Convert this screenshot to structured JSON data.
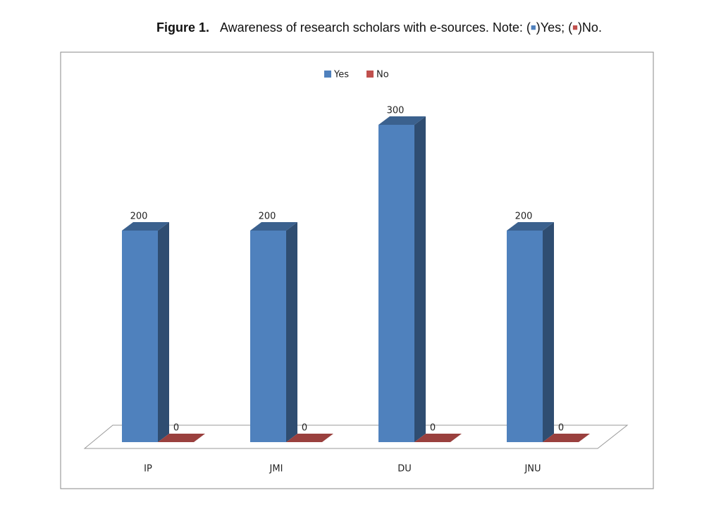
{
  "chart_data": {
    "type": "bar3d",
    "figure_label": "Figure 1.",
    "caption_parts": [
      "Awareness of research scholars with e-sources. Note: (",
      ")Yes; (",
      ")No."
    ],
    "categories": [
      "IP",
      "JMI",
      "DU",
      "JNU"
    ],
    "series": [
      {
        "name": "Yes",
        "color": "#4f81bd",
        "values": [
          200,
          200,
          300,
          200
        ]
      },
      {
        "name": "No",
        "color": "#c0504d",
        "values": [
          0,
          0,
          0,
          0
        ]
      }
    ],
    "legend": "top"
  }
}
